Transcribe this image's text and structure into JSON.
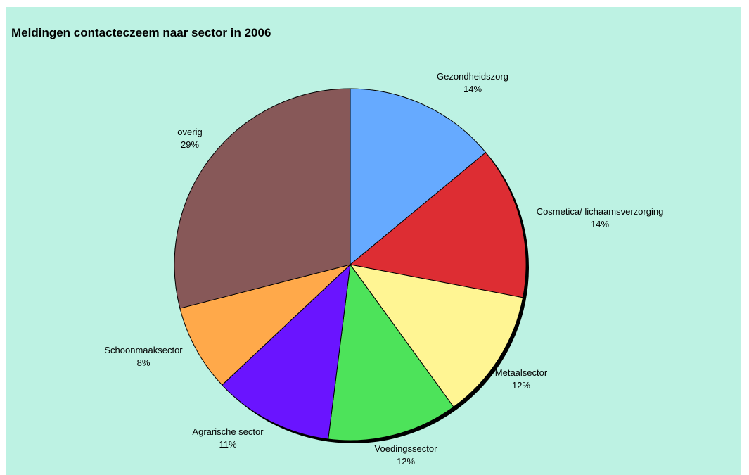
{
  "chart_data": {
    "type": "pie",
    "title": "Meldingen contacteczeem naar sector in 2006",
    "slices": [
      {
        "label": "Gezondheidszorg",
        "value": 14,
        "pct_label": "14%",
        "color": "#66aaff"
      },
      {
        "label": "Cosmetica/ lichaamsverzorging",
        "value": 14,
        "pct_label": "14%",
        "color": "#dd2d33"
      },
      {
        "label": "Metaalsector",
        "value": 12,
        "pct_label": "12%",
        "color": "#fff593"
      },
      {
        "label": "Voedingssector",
        "value": 12,
        "pct_label": "12%",
        "color": "#4de35a"
      },
      {
        "label": "Agrarische sector",
        "value": 11,
        "pct_label": "11%",
        "color": "#6a14ff"
      },
      {
        "label": "Schoonmaaksector",
        "value": 8,
        "pct_label": "8%",
        "color": "#ffa94a"
      },
      {
        "label": "overig",
        "value": 29,
        "pct_label": "29%",
        "color": "#875858"
      }
    ],
    "start_angle": "12 o'clock",
    "direction": "clockwise",
    "background_color": "#bdf2e3",
    "legend": "none"
  }
}
